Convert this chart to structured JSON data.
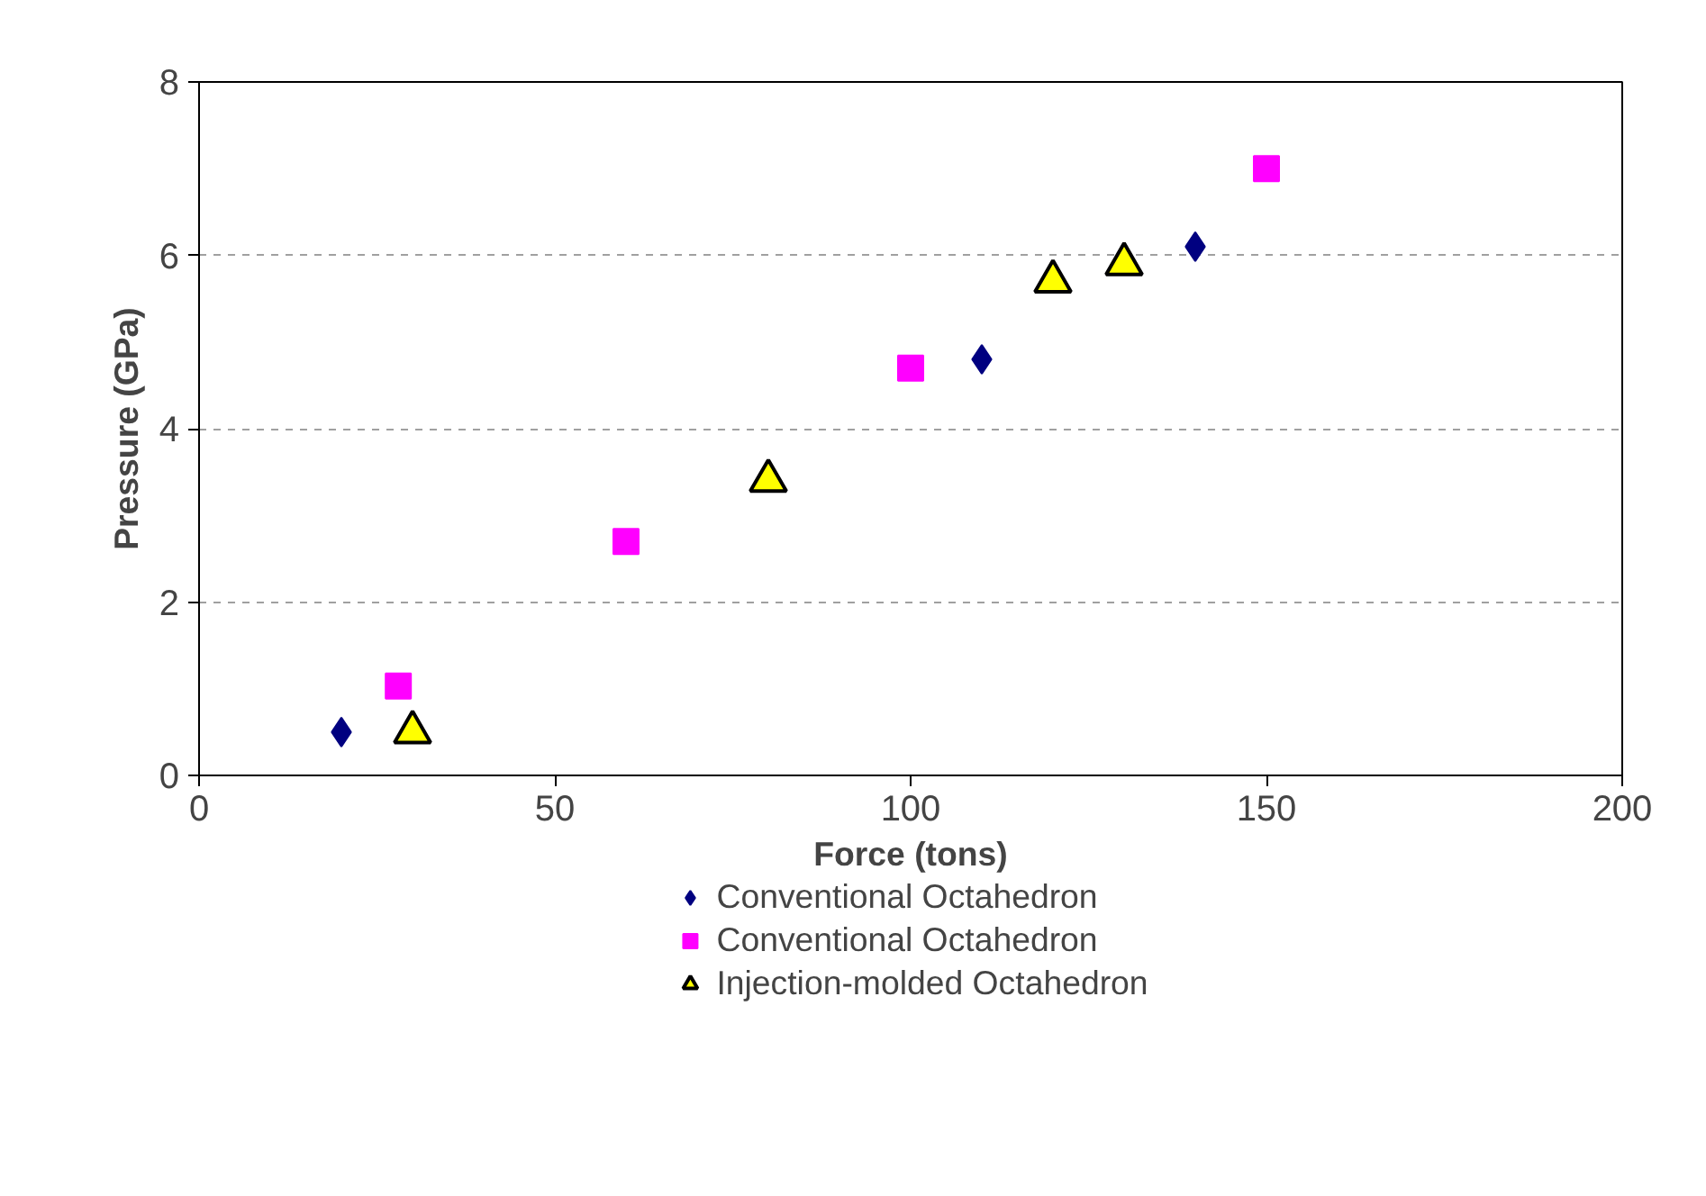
{
  "chart_data": {
    "type": "scatter",
    "xlabel": "Force (tons)",
    "ylabel": "Pressure (GPa)",
    "xlim": [
      0,
      200
    ],
    "ylim": [
      0,
      8
    ],
    "xticks": [
      0,
      50,
      100,
      150,
      200
    ],
    "yticks": [
      0,
      2,
      4,
      6,
      8
    ],
    "grid": "y",
    "legend": "bottom",
    "series": [
      {
        "name": "Conventional Octahedron",
        "color": "#000080",
        "marker": "diamond",
        "x": [
          20,
          110,
          140
        ],
        "values": [
          0.5,
          4.8,
          6.1
        ]
      },
      {
        "name": "Conventional Octahedron",
        "color": "#ff00ff",
        "marker": "square",
        "x": [
          28,
          60,
          100,
          150
        ],
        "values": [
          1.03,
          2.7,
          4.7,
          7.0
        ]
      },
      {
        "name": "Injection-molded Octahedron",
        "color": "#ffff00",
        "marker": "triangle",
        "x": [
          30,
          80,
          120,
          130
        ],
        "values": [
          0.5,
          3.4,
          5.7,
          5.9
        ]
      }
    ]
  }
}
